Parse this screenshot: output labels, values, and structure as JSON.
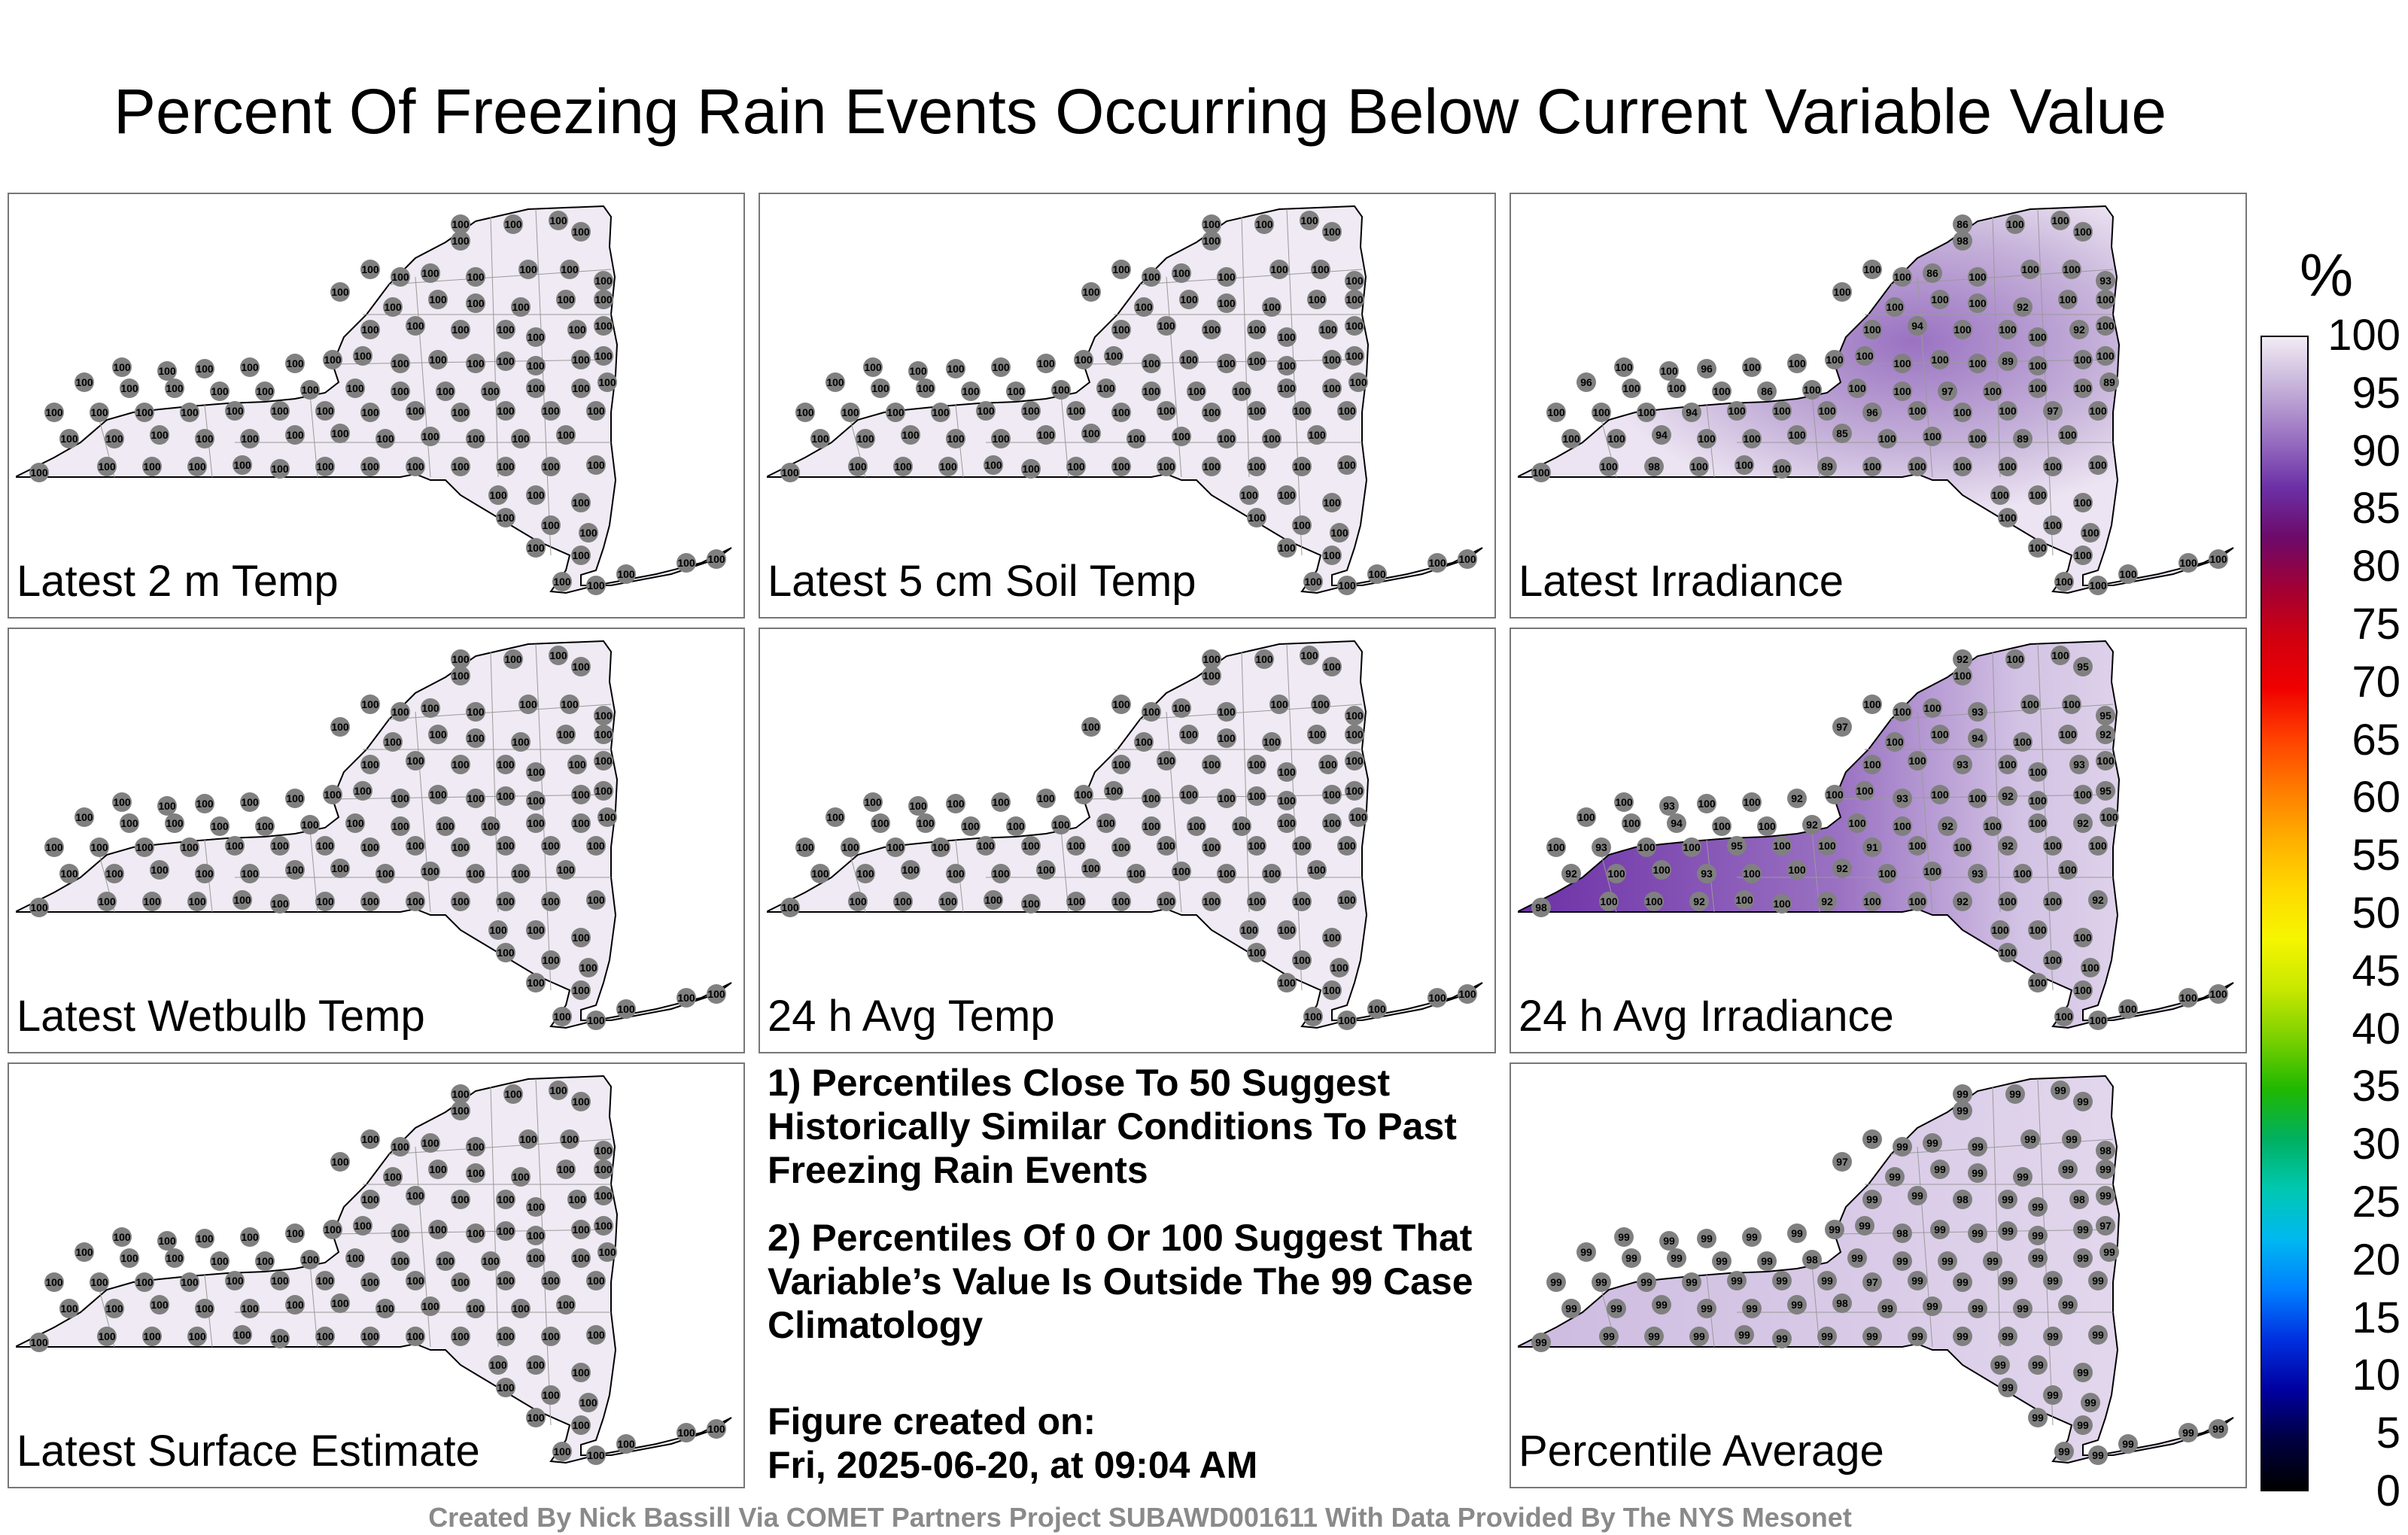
{
  "title": "Percent Of Freezing Rain Events Occurring Below Current Variable Value",
  "panels": [
    {
      "label": "Latest 2 m Temp",
      "base": 100,
      "shade": "none"
    },
    {
      "label": "Latest 5 cm Soil Temp",
      "base": 100,
      "shade": "none"
    },
    {
      "label": "Latest Irradiance",
      "base": 100,
      "shade": "east",
      "highlights": [
        "86",
        "98",
        "86",
        "93",
        "92",
        "94",
        "92",
        "96",
        "100",
        "89",
        "96",
        "86",
        "97",
        "89",
        "94",
        "96",
        "97",
        "94",
        "85",
        "89",
        "98",
        "89",
        "100"
      ]
    },
    {
      "label": "Latest Wetbulb Temp",
      "base": 100,
      "shade": "none"
    },
    {
      "label": "24 h Avg Temp",
      "base": 100,
      "shade": "none"
    },
    {
      "label": "24 h Avg Irradiance",
      "base": 100,
      "shade": "west",
      "highlights": [
        "92",
        "95",
        "97",
        "93",
        "95",
        "94",
        "92",
        "93",
        "93",
        "93",
        "92",
        "93",
        "92",
        "95",
        "94",
        "92",
        "92",
        "92",
        "93",
        "95",
        "91",
        "92",
        "92",
        "93",
        "92",
        "93",
        "98",
        "92",
        "92",
        "92",
        "92"
      ]
    },
    {
      "label": "Latest Surface Estimate",
      "base": 100,
      "shade": "none"
    },
    {
      "label": "Percentile Average",
      "base": 99,
      "shade": "light",
      "highlights": [
        "99",
        "99",
        "97",
        "99",
        "98",
        "99",
        "99",
        "98",
        "98",
        "99",
        "99",
        "98",
        "99",
        "97",
        "99",
        "98",
        "99",
        "99",
        "99",
        "99",
        "97",
        "99",
        "99",
        "99",
        "98",
        "99",
        "99"
      ]
    }
  ],
  "notes": [
    "1) Percentiles Close To 50 Suggest Historically Similar Conditions To Past Freezing Rain Events",
    "2) Percentiles Of 0 Or 100 Suggest That Variable’s Value Is Outside The 99 Case Climatology"
  ],
  "created_label": "Figure created on:",
  "created_value": "Fri, 2025-06-20, at 09:04 AM",
  "credit": "Created By Nick Bassill Via COMET Partners Project SUBAWD001611 With Data Provided By The NYS Mesonet",
  "colorbar": {
    "unit": "%",
    "ticks": [
      "100",
      "95",
      "90",
      "85",
      "80",
      "75",
      "70",
      "65",
      "60",
      "55",
      "50",
      "45",
      "40",
      "35",
      "30",
      "25",
      "20",
      "15",
      "10",
      "5",
      "0"
    ],
    "colors": [
      "#f2ecf5",
      "#c5b1d9",
      "#9a72c2",
      "#6c30a6",
      "#6d0a6a",
      "#a10035",
      "#d00010",
      "#f00000",
      "#ff4000",
      "#ff7a00",
      "#ffae00",
      "#ffd800",
      "#f6f600",
      "#c8e800",
      "#7ad000",
      "#20b800",
      "#00b060",
      "#00c8b0",
      "#00b8f0",
      "#0080ff",
      "#0030e0",
      "#0000a0",
      "#000040",
      "#000000"
    ]
  }
}
